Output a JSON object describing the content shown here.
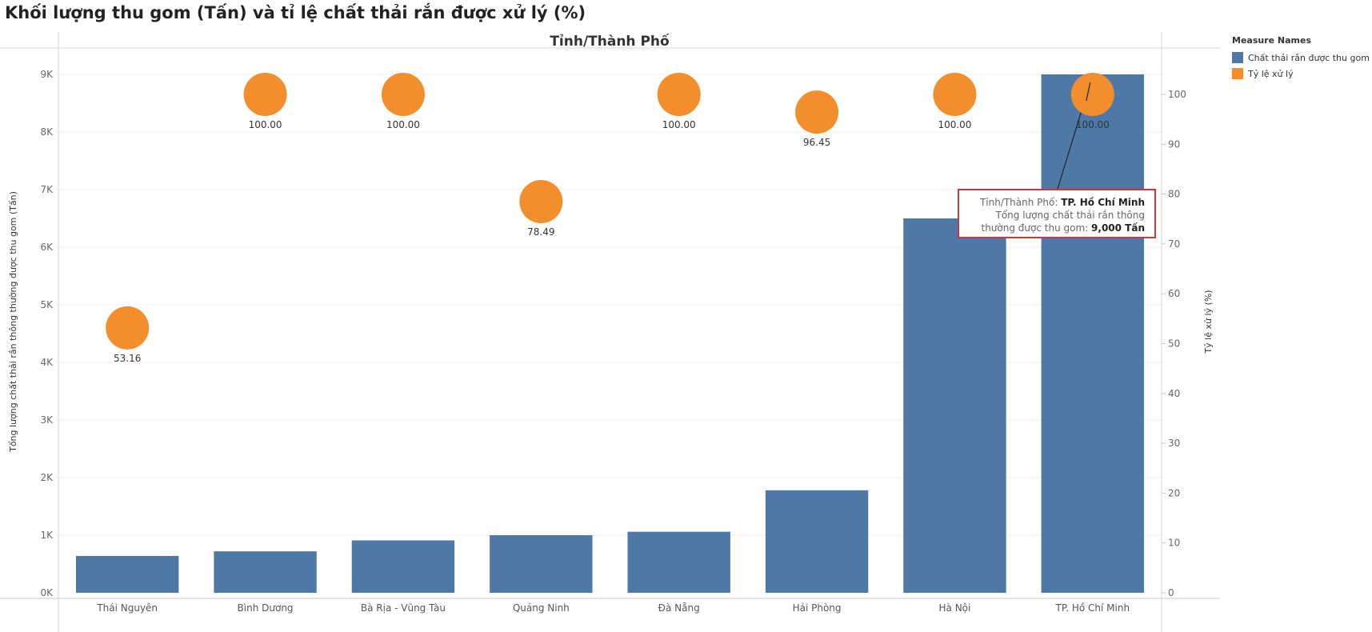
{
  "title": "Khối lượng thu gom (Tấn) và tỉ lệ chất thải rắn được xử lý (%)",
  "chart_data": {
    "type": "bar",
    "column_header": "Tỉnh/Thành Phố",
    "categories": [
      "Thái Nguyên",
      "Bình Dương",
      "Bà Rịa - Vũng Tàu",
      "Quảng Ninh",
      "Đà Nẵng",
      "Hải Phòng",
      "Hà Nội",
      "TP. Hồ Chí Minh"
    ],
    "series": [
      {
        "name": "Chất thải rắn được thu gom",
        "type": "bar",
        "axis": "left",
        "color": "#4e79a7",
        "values": [
          640,
          720,
          910,
          1000,
          1060,
          1780,
          6500,
          9000
        ]
      },
      {
        "name": "Tỷ lệ xử lý",
        "type": "circle",
        "axis": "right",
        "color": "#f28e2b",
        "values": [
          53.16,
          100.0,
          100.0,
          78.49,
          100.0,
          96.45,
          100.0,
          100.0
        ],
        "labels": [
          "53.16",
          "100.00",
          "100.00",
          "78.49",
          "100.00",
          "96.45",
          "100.00",
          "100.00"
        ]
      }
    ],
    "ylabel": "Tổng lượng chất thải rắn thông thường được thu gom (Tấn)",
    "ylim": [
      0,
      9000
    ],
    "yticks": [
      "0K",
      "1K",
      "2K",
      "3K",
      "4K",
      "5K",
      "6K",
      "7K",
      "8K",
      "9K"
    ],
    "y2label": "Tỷ lệ xử lý (%)",
    "y2lim": [
      0,
      100
    ],
    "y2ticks": [
      "0",
      "10",
      "20",
      "30",
      "40",
      "50",
      "60",
      "70",
      "80",
      "90",
      "100"
    ],
    "grid": true,
    "legend": {
      "title": "Measure Names",
      "placement": "right",
      "items": [
        {
          "label": "Chất thải rắn được thu gom",
          "color": "#4e79a7"
        },
        {
          "label": "Tỷ lệ xử lý",
          "color": "#f28e2b"
        }
      ]
    },
    "tooltip": {
      "category_label": "Tỉnh/Thành Phố:",
      "category_value": "TP. Hồ Chí Minh",
      "measure_label_line1": "Tổng lượng chất thải rắn thông",
      "measure_label_line2": "thường được thu gom:",
      "measure_value": "9,000 Tấn"
    }
  }
}
